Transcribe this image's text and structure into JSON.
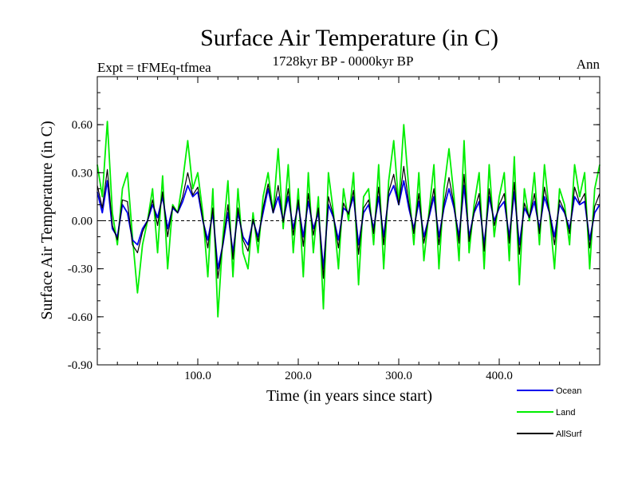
{
  "chart_data": {
    "type": "line",
    "title": "Surface Air Temperature (in C)",
    "subtitle_left": "Expt = tFMEq-tfmea",
    "subtitle_center": "1728kyr BP - 0000kyr BP",
    "subtitle_right": "Ann",
    "xlabel": "Time (in years since start)",
    "ylabel": "Surface Air Temperature (in C)",
    "xlim": [
      0,
      500
    ],
    "ylim": [
      -0.9,
      0.9
    ],
    "x_ticks": [
      {
        "value": 100,
        "label": "100.0"
      },
      {
        "value": 200,
        "label": "200.0"
      },
      {
        "value": 300,
        "label": "300.0"
      },
      {
        "value": 400,
        "label": "400.0"
      }
    ],
    "y_ticks": [
      {
        "value": -0.9,
        "label": "-0.90"
      },
      {
        "value": -0.6,
        "label": "-0.60"
      },
      {
        "value": -0.3,
        "label": "-0.30"
      },
      {
        "value": 0.0,
        "label": "0.00"
      },
      {
        "value": 0.3,
        "label": "0.30"
      },
      {
        "value": 0.6,
        "label": "0.60"
      }
    ],
    "reference_line": 0.0,
    "x": [
      0,
      5,
      10,
      15,
      20,
      25,
      30,
      35,
      40,
      45,
      50,
      55,
      60,
      65,
      70,
      75,
      80,
      85,
      90,
      95,
      100,
      105,
      110,
      115,
      120,
      125,
      130,
      135,
      140,
      145,
      150,
      155,
      160,
      165,
      170,
      175,
      180,
      185,
      190,
      195,
      200,
      205,
      210,
      215,
      220,
      225,
      230,
      235,
      240,
      245,
      250,
      255,
      260,
      265,
      270,
      275,
      280,
      285,
      290,
      295,
      300,
      305,
      310,
      315,
      320,
      325,
      330,
      335,
      340,
      345,
      350,
      355,
      360,
      365,
      370,
      375,
      380,
      385,
      390,
      395,
      400,
      405,
      410,
      415,
      420,
      425,
      430,
      435,
      440,
      445,
      450,
      455,
      460,
      465,
      470,
      475,
      480,
      485,
      490,
      495,
      500
    ],
    "series": [
      {
        "name": "Land",
        "color": "#00ee00",
        "values": [
          0.35,
          0.15,
          0.62,
          0.05,
          -0.15,
          0.2,
          0.3,
          -0.1,
          -0.45,
          -0.15,
          0.0,
          0.2,
          -0.2,
          0.28,
          -0.3,
          0.1,
          0.05,
          0.25,
          0.5,
          0.2,
          0.3,
          0.05,
          -0.35,
          0.2,
          -0.6,
          -0.1,
          0.25,
          -0.35,
          0.2,
          -0.2,
          -0.3,
          0.05,
          -0.2,
          0.15,
          0.3,
          0.05,
          0.45,
          -0.05,
          0.35,
          -0.2,
          0.2,
          -0.35,
          0.3,
          -0.2,
          0.15,
          -0.55,
          0.3,
          0.05,
          -0.3,
          0.2,
          0.0,
          0.3,
          -0.4,
          0.15,
          0.2,
          -0.15,
          0.35,
          -0.3,
          0.25,
          0.5,
          0.1,
          0.6,
          0.2,
          -0.15,
          0.3,
          -0.25,
          0.05,
          0.35,
          -0.3,
          0.2,
          0.45,
          0.15,
          -0.25,
          0.5,
          -0.2,
          0.1,
          0.3,
          -0.3,
          0.35,
          -0.1,
          0.15,
          0.3,
          -0.25,
          0.4,
          -0.4,
          0.2,
          0.0,
          0.3,
          -0.15,
          0.35,
          0.05,
          -0.3,
          0.2,
          0.1,
          -0.15,
          0.35,
          0.15,
          0.3,
          -0.3,
          0.2,
          0.35
        ]
      },
      {
        "name": "Ocean",
        "color": "#0000ee",
        "values": [
          0.18,
          0.05,
          0.25,
          -0.05,
          -0.1,
          0.1,
          0.05,
          -0.12,
          -0.15,
          -0.05,
          0.0,
          0.1,
          0.02,
          0.15,
          -0.05,
          0.08,
          0.05,
          0.12,
          0.22,
          0.15,
          0.18,
          0.0,
          -0.12,
          0.05,
          -0.3,
          -0.15,
          0.05,
          -0.2,
          0.05,
          -0.1,
          -0.15,
          0.0,
          -0.1,
          0.05,
          0.2,
          0.05,
          0.15,
          0.0,
          0.15,
          -0.05,
          0.1,
          -0.1,
          0.12,
          -0.05,
          0.05,
          -0.3,
          0.1,
          0.02,
          -0.12,
          0.08,
          0.05,
          0.15,
          -0.15,
          0.05,
          0.1,
          -0.05,
          0.15,
          -0.1,
          0.15,
          0.22,
          0.1,
          0.25,
          0.08,
          -0.05,
          0.12,
          -0.1,
          0.02,
          0.15,
          -0.1,
          0.08,
          0.2,
          0.08,
          -0.1,
          0.22,
          -0.1,
          0.05,
          0.12,
          -0.15,
          0.15,
          0.0,
          0.08,
          0.12,
          -0.1,
          0.18,
          -0.15,
          0.08,
          0.02,
          0.12,
          -0.05,
          0.15,
          0.05,
          -0.1,
          0.1,
          0.05,
          -0.05,
          0.15,
          0.1,
          0.12,
          -0.12,
          0.05,
          0.1
        ]
      },
      {
        "name": "AllSurf",
        "color": "#000000",
        "values": [
          0.22,
          0.08,
          0.32,
          -0.03,
          -0.12,
          0.13,
          0.12,
          -0.15,
          -0.2,
          -0.07,
          0.0,
          0.13,
          -0.03,
          0.18,
          -0.1,
          0.09,
          0.05,
          0.15,
          0.3,
          0.16,
          0.21,
          0.01,
          -0.17,
          0.08,
          -0.36,
          -0.14,
          0.1,
          -0.24,
          0.08,
          -0.12,
          -0.19,
          0.01,
          -0.13,
          0.08,
          0.23,
          0.05,
          0.22,
          -0.01,
          0.2,
          -0.09,
          0.13,
          -0.16,
          0.17,
          -0.09,
          0.08,
          -0.36,
          0.15,
          0.03,
          -0.17,
          0.11,
          0.04,
          0.19,
          -0.21,
          0.08,
          0.13,
          -0.08,
          0.21,
          -0.15,
          0.18,
          0.29,
          0.1,
          0.34,
          0.11,
          -0.08,
          0.17,
          -0.14,
          0.03,
          0.2,
          -0.15,
          0.11,
          0.27,
          0.1,
          -0.14,
          0.29,
          -0.13,
          0.06,
          0.17,
          -0.19,
          0.2,
          -0.03,
          0.1,
          0.17,
          -0.14,
          0.24,
          -0.21,
          0.11,
          0.02,
          0.17,
          -0.08,
          0.21,
          0.05,
          -0.15,
          0.13,
          0.06,
          -0.08,
          0.21,
          0.11,
          0.17,
          -0.17,
          0.09,
          0.17
        ]
      }
    ],
    "legend": [
      {
        "label": "Ocean",
        "color": "#0000ee"
      },
      {
        "label": "Land",
        "color": "#00ee00"
      },
      {
        "label": "AllSurf",
        "color": "#000000"
      }
    ],
    "legend_position": "bottom-right"
  }
}
